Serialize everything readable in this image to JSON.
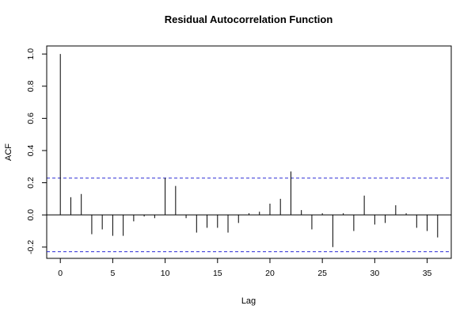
{
  "chart_data": {
    "type": "bar",
    "title": "Residual Autocorrelation Function",
    "xlabel": "Lag",
    "ylabel": "ACF",
    "xlim": [
      -1.3,
      37.3
    ],
    "ylim": [
      -0.27,
      1.05
    ],
    "x_ticks": [
      0,
      5,
      10,
      15,
      20,
      25,
      30,
      35
    ],
    "y_ticks": [
      -0.2,
      0.0,
      0.2,
      0.4,
      0.6,
      0.8,
      1.0
    ],
    "y_tick_labels": [
      "-0.2",
      "0.0",
      "0.2",
      "0.4",
      "0.6",
      "0.8",
      "1.0"
    ],
    "confidence_bound": 0.229,
    "lags": [
      0,
      1,
      2,
      3,
      4,
      5,
      6,
      7,
      8,
      9,
      10,
      11,
      12,
      13,
      14,
      15,
      16,
      17,
      18,
      19,
      20,
      21,
      22,
      23,
      24,
      25,
      26,
      27,
      28,
      29,
      30,
      31,
      32,
      33,
      34,
      35,
      36
    ],
    "values": [
      1.0,
      0.11,
      0.13,
      -0.12,
      -0.09,
      -0.13,
      -0.13,
      -0.04,
      -0.01,
      -0.02,
      0.23,
      0.18,
      -0.02,
      -0.11,
      -0.08,
      -0.08,
      -0.11,
      -0.05,
      0.01,
      0.02,
      0.07,
      0.1,
      0.27,
      0.03,
      -0.09,
      0.01,
      -0.2,
      0.01,
      -0.1,
      0.12,
      -0.06,
      -0.05,
      0.06,
      0.01,
      -0.08,
      -0.1,
      -0.14
    ],
    "grid": false,
    "legend": "none",
    "colors": {
      "bars": "#000000",
      "confidence_lines": "#2b2bd6",
      "zero_line": "#000000"
    }
  }
}
